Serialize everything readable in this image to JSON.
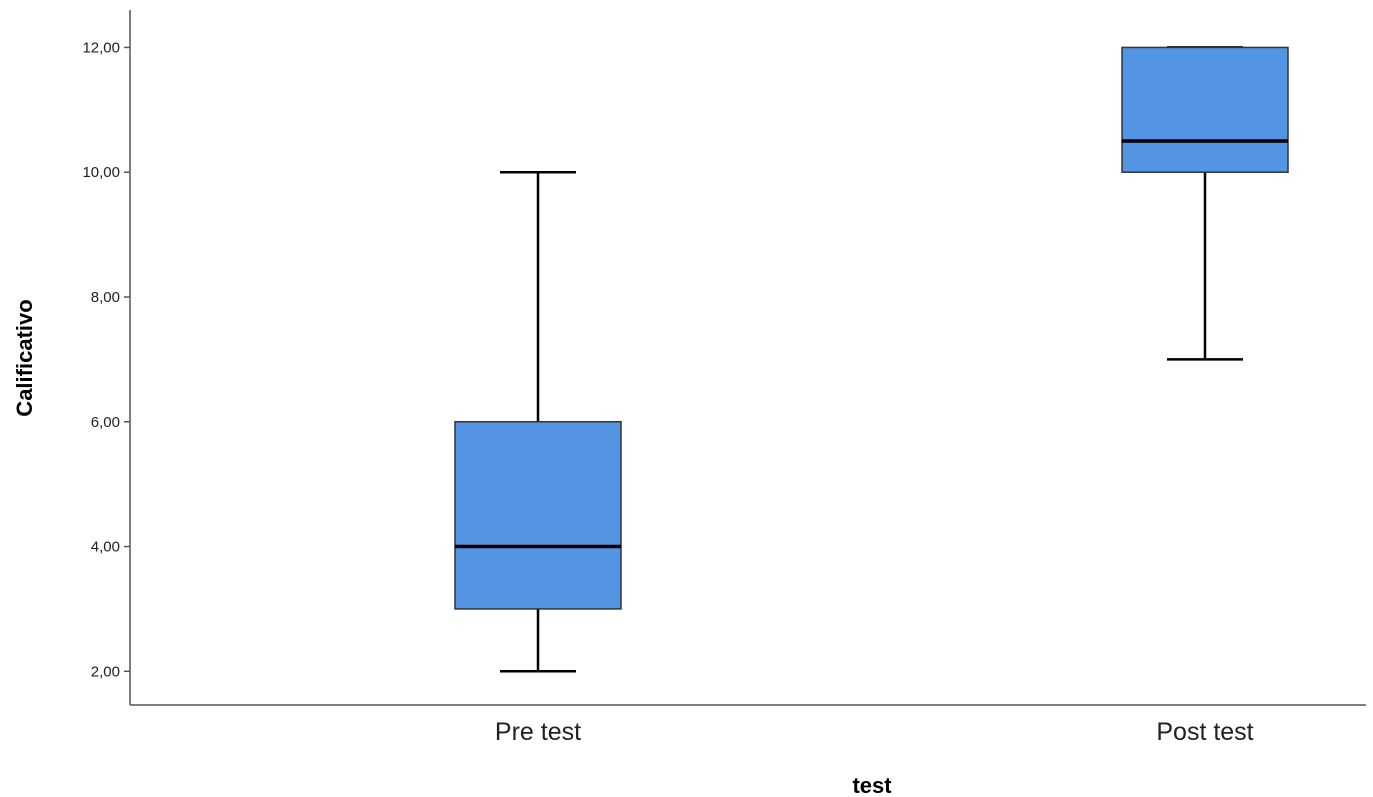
{
  "chart_data": {
    "type": "boxplot",
    "xlabel": "test",
    "ylabel": "Calificativo",
    "ylim": [
      1.46,
      12.6
    ],
    "y_ticks": [
      {
        "value": 2,
        "label": "2,00"
      },
      {
        "value": 4,
        "label": "4,00"
      },
      {
        "value": 6,
        "label": "6,00"
      },
      {
        "value": 8,
        "label": "8,00"
      },
      {
        "value": 10,
        "label": "10,00"
      },
      {
        "value": 12,
        "label": "12,00"
      }
    ],
    "grid": false,
    "box_color": "#5394e3",
    "categories": [
      "Pre test",
      "Post test"
    ],
    "boxes": [
      {
        "category": "Pre test",
        "min": 2,
        "q1": 3,
        "median": 4,
        "q3": 6,
        "max": 10
      },
      {
        "category": "Post test",
        "min": 7,
        "q1": 10,
        "median": 10.5,
        "q3": 12,
        "max": 12
      }
    ]
  }
}
